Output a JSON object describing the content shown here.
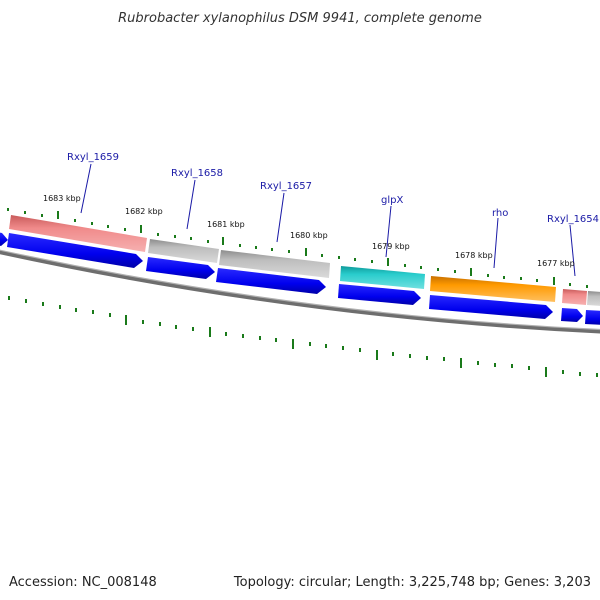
{
  "title": "Rubrobacter xylanophilus DSM 9941, complete genome",
  "accession": "Accession: NC_008148",
  "summary": "Topology: circular; Length: 3,225,748 bp; Genes: 3,203",
  "scale_labels": [
    "1683 kbp",
    "1682 kbp",
    "1681 kbp",
    "1680 kbp",
    "1679 kbp",
    "1678 kbp",
    "1677 kbp"
  ],
  "gene_labels": [
    "Rxyl_1659",
    "Rxyl_1658",
    "Rxyl_1657",
    "glpX",
    "rho",
    "Rxyl_1654"
  ],
  "colors": {
    "backbone": "#7a7a7a",
    "tick": "#1a7a1a",
    "cds_arrow": "#0000ee",
    "label": "#1a1aa6",
    "gene_pink": "#ee8080",
    "gene_gray": "#c0c0c0",
    "gene_cyan": "#20c0c0",
    "gene_orange": "#ff9a00"
  }
}
